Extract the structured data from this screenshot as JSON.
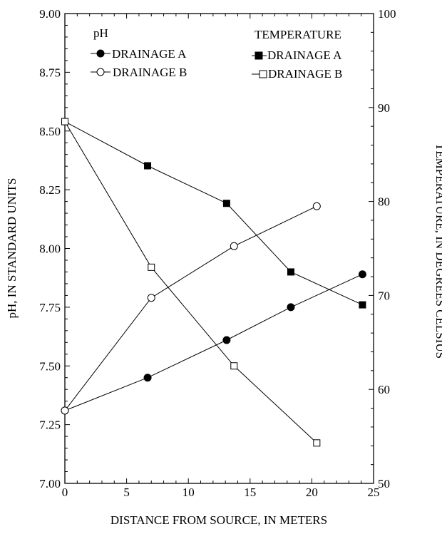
{
  "chart_data": {
    "type": "line",
    "xlabel": "DISTANCE FROM SOURCE, IN METERS",
    "ylabel_left": "pH, IN STANDARD UNITS",
    "ylabel_right": "TEMPERATURE, IN DEGREES CELSIUS",
    "xlim": [
      0,
      25
    ],
    "ylim_left": [
      7.0,
      9.0
    ],
    "ylim_right": [
      50,
      100
    ],
    "x_ticks": [
      "0",
      "5",
      "10",
      "15",
      "20",
      "25"
    ],
    "y_left_ticks": [
      "7.00",
      "7.25",
      "7.50",
      "7.75",
      "8.00",
      "8.25",
      "8.50",
      "8.75",
      "9.00"
    ],
    "y_right_ticks": [
      "50",
      "60",
      "70",
      "80",
      "90",
      "100"
    ],
    "legend_left": {
      "title": "pH",
      "entries": [
        "DRAINAGE A",
        "DRAINAGE B"
      ]
    },
    "legend_right": {
      "title": "TEMPERATURE",
      "entries": [
        "DRAINAGE A",
        "DRAINAGE B"
      ]
    },
    "series": [
      {
        "group": "pH",
        "name": "DRAINAGE A",
        "axis": "left",
        "marker": "filled-circle",
        "x": [
          0,
          6.7,
          13.1,
          18.3,
          24.1
        ],
        "y": [
          7.31,
          7.45,
          7.61,
          7.75,
          7.89
        ]
      },
      {
        "group": "pH",
        "name": "DRAINAGE B",
        "axis": "left",
        "marker": "open-circle",
        "x": [
          0,
          7.0,
          13.7,
          20.4
        ],
        "y": [
          7.31,
          7.79,
          8.01,
          8.18
        ]
      },
      {
        "group": "TEMPERATURE",
        "name": "DRAINAGE A",
        "axis": "right",
        "marker": "filled-square",
        "x": [
          0,
          6.7,
          13.1,
          18.3,
          24.1
        ],
        "y": [
          88.5,
          83.8,
          79.8,
          72.5,
          69.0
        ]
      },
      {
        "group": "TEMPERATURE",
        "name": "DRAINAGE B",
        "axis": "right",
        "marker": "open-square",
        "x": [
          0,
          7.0,
          13.7,
          20.4
        ],
        "y": [
          88.5,
          73.0,
          62.5,
          54.3
        ]
      }
    ],
    "colors": {
      "axis": "#000000",
      "marker": "#000000",
      "background": "#ffffff"
    }
  }
}
